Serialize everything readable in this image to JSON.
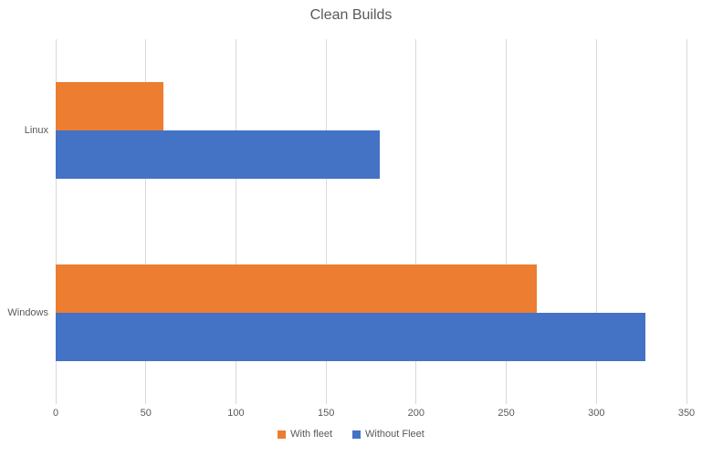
{
  "title": "Clean Builds",
  "chart_data": {
    "type": "bar",
    "orientation": "horizontal",
    "title": "Clean Builds",
    "categories": [
      "Linux",
      "Windows"
    ],
    "series": [
      {
        "name": "With fleet",
        "color": "#ED7D31",
        "values": [
          60,
          267
        ]
      },
      {
        "name": "Without Fleet",
        "color": "#4472C4",
        "values": [
          180,
          327
        ]
      }
    ],
    "xlim": [
      0,
      350
    ],
    "xticks": [
      0,
      50,
      100,
      150,
      200,
      250,
      300,
      350
    ],
    "grid": true,
    "legend_position": "bottom",
    "colors": {
      "gridline": "#D9D9D9",
      "axis_text": "#595959",
      "title_text": "#595959",
      "background": "#FFFFFF"
    }
  }
}
